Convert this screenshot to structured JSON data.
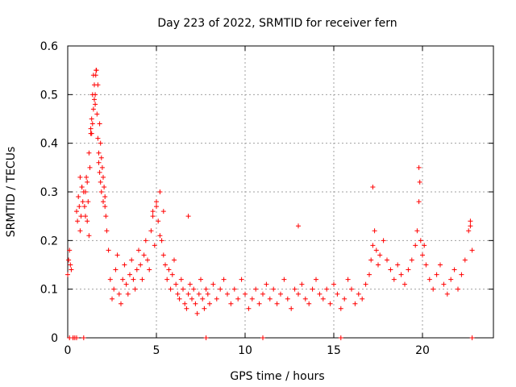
{
  "chart_data": {
    "type": "scatter",
    "title": "Day 223 of 2022, SRMTID for receiver fern",
    "xlabel": "GPS time / hours",
    "ylabel": "SRMTID / TECUs",
    "xlim": [
      0,
      24
    ],
    "ylim": [
      0,
      0.6
    ],
    "x_ticks": [
      0,
      5,
      10,
      15,
      20
    ],
    "x_tick_labels": [
      "0",
      "5",
      "10",
      "15",
      "20"
    ],
    "y_ticks": [
      0,
      0.1,
      0.2,
      0.3,
      0.4,
      0.5,
      0.6
    ],
    "y_tick_labels": [
      "0",
      "0.1",
      "0.2",
      "0.3",
      "0.4",
      "0.5",
      "0.6"
    ],
    "grid": true,
    "marker": "plus",
    "series": [
      {
        "name": "SRMTID",
        "color": "#ff0000",
        "x": [
          0.0,
          0.05,
          0.1,
          0.15,
          0.2,
          0.3,
          0.4,
          0.5,
          0.55,
          0.6,
          0.65,
          0.7,
          0.75,
          0.8,
          0.85,
          0.9,
          0.95,
          1.0,
          1.05,
          1.1,
          1.15,
          1.2,
          1.25,
          1.3,
          1.35,
          1.4,
          1.45,
          1.5,
          1.55,
          1.6,
          1.65,
          1.7,
          1.75,
          1.8,
          1.85,
          1.9,
          1.95,
          2.0,
          2.05,
          2.1,
          2.15,
          2.2,
          2.3,
          2.4,
          2.5,
          2.6,
          2.7,
          2.8,
          2.9,
          3.0,
          3.1,
          3.2,
          3.3,
          3.4,
          3.5,
          3.6,
          3.7,
          3.8,
          3.9,
          4.0,
          4.1,
          4.2,
          4.3,
          4.4,
          4.5,
          4.6,
          4.7,
          4.8,
          4.9,
          5.0,
          5.1,
          5.2,
          5.3,
          5.4,
          5.5,
          5.6,
          5.7,
          5.8,
          5.9,
          6.0,
          6.1,
          6.2,
          6.3,
          6.4,
          6.5,
          6.6,
          6.7,
          6.8,
          6.9,
          7.0,
          7.1,
          7.2,
          7.3,
          7.4,
          7.5,
          7.6,
          7.7,
          7.8,
          7.9,
          8.0,
          8.2,
          8.4,
          8.6,
          8.8,
          9.0,
          9.2,
          9.4,
          9.6,
          9.8,
          10.0,
          10.2,
          10.4,
          10.6,
          10.8,
          11.0,
          11.2,
          11.4,
          11.6,
          11.8,
          12.0,
          12.2,
          12.4,
          12.6,
          12.8,
          13.0,
          13.2,
          13.4,
          13.6,
          13.8,
          14.0,
          14.2,
          14.4,
          14.6,
          14.8,
          15.0,
          15.2,
          15.4,
          15.6,
          15.8,
          16.0,
          16.2,
          16.4,
          16.6,
          16.8,
          17.0,
          17.1,
          17.2,
          17.3,
          17.4,
          17.5,
          17.6,
          17.8,
          18.0,
          18.2,
          18.4,
          18.6,
          18.8,
          19.0,
          19.2,
          19.4,
          19.6,
          19.7,
          19.8,
          19.9,
          20.0,
          20.1,
          20.2,
          20.4,
          20.6,
          20.8,
          21.0,
          21.2,
          21.4,
          21.6,
          21.8,
          22.0,
          22.2,
          22.4,
          22.6,
          22.7,
          22.8,
          1.62,
          1.58,
          1.7,
          1.55,
          1.5,
          1.45,
          1.4,
          1.35,
          1.3,
          1.75,
          1.8,
          1.85,
          1.9,
          2.0,
          2.1,
          1.0,
          1.1,
          1.2,
          0.7,
          0.8,
          4.8,
          5.0,
          5.2,
          5.4,
          6.8,
          13.0,
          17.2,
          19.8,
          19.85,
          22.7,
          0.1,
          0.3,
          0.5,
          0.9,
          7.8,
          11.0,
          15.4,
          22.8
        ],
        "y": [
          0.13,
          0.16,
          0.18,
          0.15,
          0.14,
          0.0,
          0.0,
          0.26,
          0.24,
          0.29,
          0.27,
          0.22,
          0.25,
          0.31,
          0.28,
          0.3,
          0.27,
          0.3,
          0.33,
          0.32,
          0.28,
          0.38,
          0.35,
          0.42,
          0.45,
          0.5,
          0.54,
          0.52,
          0.48,
          0.55,
          0.46,
          0.41,
          0.38,
          0.44,
          0.4,
          0.37,
          0.35,
          0.33,
          0.31,
          0.29,
          0.25,
          0.22,
          0.18,
          0.12,
          0.08,
          0.1,
          0.14,
          0.17,
          0.09,
          0.07,
          0.12,
          0.15,
          0.11,
          0.09,
          0.13,
          0.16,
          0.12,
          0.1,
          0.14,
          0.18,
          0.15,
          0.12,
          0.17,
          0.2,
          0.16,
          0.14,
          0.22,
          0.25,
          0.19,
          0.27,
          0.24,
          0.21,
          0.2,
          0.17,
          0.15,
          0.12,
          0.14,
          0.1,
          0.13,
          0.16,
          0.11,
          0.09,
          0.08,
          0.12,
          0.1,
          0.07,
          0.06,
          0.09,
          0.11,
          0.08,
          0.1,
          0.07,
          0.05,
          0.09,
          0.12,
          0.08,
          0.06,
          0.1,
          0.09,
          0.07,
          0.11,
          0.08,
          0.1,
          0.12,
          0.09,
          0.07,
          0.1,
          0.08,
          0.12,
          0.09,
          0.06,
          0.08,
          0.1,
          0.07,
          0.09,
          0.11,
          0.08,
          0.1,
          0.07,
          0.09,
          0.12,
          0.08,
          0.06,
          0.1,
          0.09,
          0.11,
          0.08,
          0.07,
          0.1,
          0.12,
          0.09,
          0.08,
          0.1,
          0.07,
          0.11,
          0.09,
          0.06,
          0.08,
          0.12,
          0.1,
          0.07,
          0.09,
          0.08,
          0.11,
          0.13,
          0.16,
          0.19,
          0.22,
          0.18,
          0.15,
          0.17,
          0.2,
          0.16,
          0.14,
          0.12,
          0.15,
          0.13,
          0.11,
          0.14,
          0.16,
          0.19,
          0.22,
          0.28,
          0.2,
          0.17,
          0.19,
          0.15,
          0.12,
          0.1,
          0.13,
          0.15,
          0.11,
          0.09,
          0.12,
          0.14,
          0.1,
          0.13,
          0.16,
          0.22,
          0.24,
          0.18,
          0.55,
          0.54,
          0.52,
          0.5,
          0.49,
          0.47,
          0.44,
          0.42,
          0.43,
          0.36,
          0.34,
          0.32,
          0.3,
          0.28,
          0.27,
          0.25,
          0.24,
          0.21,
          0.33,
          0.31,
          0.26,
          0.28,
          0.3,
          0.26,
          0.25,
          0.23,
          0.31,
          0.35,
          0.32,
          0.23,
          0.0,
          0.0,
          0.0,
          0.0,
          0.0,
          0.0,
          0.0,
          0.0
        ]
      }
    ]
  }
}
